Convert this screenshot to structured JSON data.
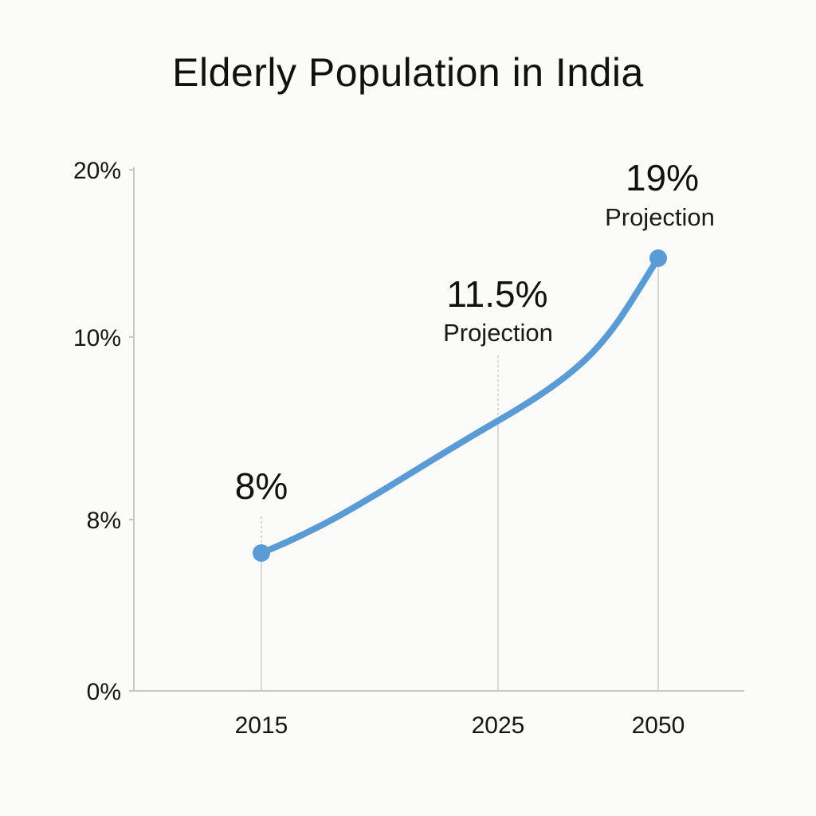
{
  "chart_data": {
    "type": "line",
    "title": "Elderly Population in India",
    "xlabel": "",
    "ylabel": "",
    "x": [
      "2015",
      "2025",
      "2050"
    ],
    "series": [
      {
        "values": [
          8,
          11.5,
          19
        ],
        "value_labels": [
          "8%",
          "11.5%",
          "19%"
        ],
        "annotations": [
          "",
          "Projection",
          "Projection"
        ]
      }
    ],
    "y_ticks": [
      {
        "value": 0,
        "label": "0%"
      },
      {
        "value": 8,
        "label": "8%"
      },
      {
        "value": 10,
        "label": "10%"
      },
      {
        "value": 20,
        "label": "20%"
      }
    ],
    "ylim": [
      0,
      20
    ],
    "grid": false,
    "legend": "none",
    "colors": {
      "line": "#5b9bd5",
      "axis": "#c8c8c8",
      "guide": "#cfcfcf",
      "text": "#111111",
      "background": "#fbfbf9"
    }
  }
}
